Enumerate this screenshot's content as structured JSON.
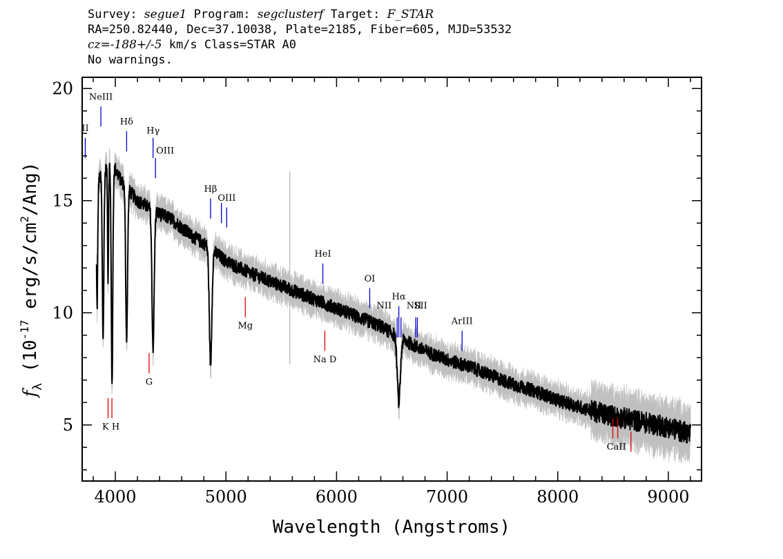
{
  "header": {
    "survey_label": "Survey:",
    "survey": "segue1",
    "program_label": "Program:",
    "program": "segclusterf",
    "target_label": "Target:",
    "target": "F_STAR",
    "line2": "RA=250.82440, Dec=37.10038, Plate=2185, Fiber=605, MJD=53532",
    "cz_prefix": "cz=",
    "cz_value": "-188+/-5",
    "cz_suffix": " km/s Class=STAR A0",
    "warnings": "No warnings."
  },
  "chart_data": {
    "type": "line",
    "xlabel": "Wavelength (Angstroms)",
    "ylabel": "f_λ (10^-17 erg/s/cm^2/Ang)",
    "ylabel_parts": {
      "f": "f",
      "sub": "λ",
      "pre": " (10",
      "exp": "-17",
      "mid": " erg/s/cm",
      "exp2": "2",
      "post": "/Ang)"
    },
    "xlim": [
      3700,
      9300
    ],
    "ylim": [
      2.5,
      20.5
    ],
    "xticks": [
      4000,
      5000,
      6000,
      7000,
      8000,
      9000
    ],
    "yticks": [
      5,
      10,
      15,
      20
    ],
    "grid": false,
    "continuum": [
      [
        3830,
        15.8
      ],
      [
        3900,
        16.3
      ],
      [
        3950,
        16.6
      ],
      [
        4000,
        16.4
      ],
      [
        4050,
        15.9
      ],
      [
        4100,
        15.6
      ],
      [
        4200,
        15.0
      ],
      [
        4300,
        14.7
      ],
      [
        4400,
        14.4
      ],
      [
        4500,
        14.2
      ],
      [
        4600,
        13.8
      ],
      [
        4700,
        13.4
      ],
      [
        4800,
        13.1
      ],
      [
        4900,
        12.7
      ],
      [
        5000,
        12.3
      ],
      [
        5200,
        11.8
      ],
      [
        5400,
        11.4
      ],
      [
        5600,
        11.0
      ],
      [
        5800,
        10.6
      ],
      [
        6000,
        10.2
      ],
      [
        6200,
        9.8
      ],
      [
        6400,
        9.4
      ],
      [
        6600,
        8.8
      ],
      [
        6800,
        8.3
      ],
      [
        7000,
        7.9
      ],
      [
        7200,
        7.6
      ],
      [
        7400,
        7.2
      ],
      [
        7600,
        6.8
      ],
      [
        7800,
        6.5
      ],
      [
        8000,
        6.1
      ],
      [
        8200,
        5.8
      ],
      [
        8400,
        5.5
      ],
      [
        8600,
        5.3
      ],
      [
        8800,
        5.1
      ],
      [
        9000,
        4.9
      ],
      [
        9200,
        4.6
      ]
    ],
    "absorption_lines": [
      {
        "center": 3835,
        "depth": 0.35,
        "width": 8
      },
      {
        "center": 3889,
        "depth": 0.45,
        "width": 10
      },
      {
        "center": 3934,
        "depth": 0.3,
        "width": 6
      },
      {
        "center": 3970,
        "depth": 0.58,
        "width": 10
      },
      {
        "center": 4102,
        "depth": 0.43,
        "width": 12
      },
      {
        "center": 4341,
        "depth": 0.42,
        "width": 14
      },
      {
        "center": 4861,
        "depth": 0.4,
        "width": 16
      },
      {
        "center": 6563,
        "depth": 0.32,
        "width": 20
      }
    ],
    "noise_amplitude": 0.3,
    "spike": {
      "wavelength": 5577,
      "low": 7.7,
      "high": 16.3
    },
    "emission_markers": [
      {
        "label": "NeIII",
        "wavelength": 3869,
        "y1": 18.3,
        "y2": 19.2
      },
      {
        "label": "OII",
        "wavelength": 3728,
        "y1": 16.9,
        "y2": 17.8
      },
      {
        "label": "Hδ",
        "wavelength": 4102,
        "y1": 17.2,
        "y2": 18.1
      },
      {
        "label": "Hγ",
        "wavelength": 4341,
        "y1": 16.9,
        "y2": 17.8
      },
      {
        "label": "OIII",
        "wavelength": 4363,
        "y1": 16.0,
        "y2": 16.9
      },
      {
        "label": "Hβ",
        "wavelength": 4861,
        "y1": 14.2,
        "y2": 15.1
      },
      {
        "label": "OIII",
        "wavelength": 4959,
        "y1": 14.0,
        "y2": 14.9
      },
      {
        "label": "OIII",
        "wavelength": 5007,
        "y1": 13.8,
        "y2": 14.7
      },
      {
        "label": "HeI",
        "wavelength": 5876,
        "y1": 11.3,
        "y2": 12.2
      },
      {
        "label": "OI",
        "wavelength": 6300,
        "y1": 10.2,
        "y2": 11.1
      },
      {
        "label": "NII",
        "wavelength": 6548,
        "y1": 8.9,
        "y2": 9.8
      },
      {
        "label": "Hα",
        "wavelength": 6563,
        "y1": 8.9,
        "y2": 10.3
      },
      {
        "label": "NII",
        "wavelength": 6583,
        "y1": 8.9,
        "y2": 9.8
      },
      {
        "label": "SII",
        "wavelength": 6716,
        "y1": 8.9,
        "y2": 9.8
      },
      {
        "label": "SII",
        "wavelength": 6731,
        "y1": 8.9,
        "y2": 9.8
      },
      {
        "label": "ArIII",
        "wavelength": 7135,
        "y1": 8.3,
        "y2": 9.2
      }
    ],
    "absorption_markers": [
      {
        "label": "K",
        "wavelength": 3934,
        "y1": 5.3,
        "y2": 6.2
      },
      {
        "label": "H",
        "wavelength": 3969,
        "y1": 5.3,
        "y2": 6.2
      },
      {
        "label": "G",
        "wavelength": 4305,
        "y1": 7.3,
        "y2": 8.2
      },
      {
        "label": "Mg",
        "wavelength": 5175,
        "y1": 9.8,
        "y2": 10.7
      },
      {
        "label": "Na D",
        "wavelength": 5894,
        "y1": 8.3,
        "y2": 9.2
      },
      {
        "label": "CaII",
        "wavelength": 8498,
        "y1": 4.4,
        "y2": 5.3
      },
      {
        "label": "CaII",
        "wavelength": 8542,
        "y1": 4.4,
        "y2": 5.3
      },
      {
        "label": "CaII",
        "wavelength": 8662,
        "y1": 3.8,
        "y2": 4.7
      }
    ],
    "emission_label_positions": [
      {
        "text": "NeIII",
        "wavelength": 3869,
        "y": 19.5
      },
      {
        "text": "II",
        "wavelength": 3728,
        "y": 18.1
      },
      {
        "text": "Hδ",
        "wavelength": 4102,
        "y": 18.4
      },
      {
        "text": "Hγ",
        "wavelength": 4341,
        "y": 18.0
      },
      {
        "text": "OIII",
        "wavelength": 4450,
        "y": 17.1
      },
      {
        "text": "Hβ",
        "wavelength": 4861,
        "y": 15.4
      },
      {
        "text": "OIII",
        "wavelength": 5007,
        "y": 15.0
      },
      {
        "text": "HeI",
        "wavelength": 5876,
        "y": 12.5
      },
      {
        "text": "OI",
        "wavelength": 6300,
        "y": 11.4
      },
      {
        "text": "NII",
        "wavelength": 6430,
        "y": 10.2
      },
      {
        "text": "Hα",
        "wavelength": 6563,
        "y": 10.6
      },
      {
        "text": "NII",
        "wavelength": 6700,
        "y": 10.2
      },
      {
        "text": "SII",
        "wavelength": 6760,
        "y": 10.2
      },
      {
        "text": "ArIII",
        "wavelength": 7135,
        "y": 9.5
      }
    ],
    "absorption_label_positions": [
      {
        "text": "K H",
        "wavelength": 3960,
        "y": 4.8
      },
      {
        "text": "G",
        "wavelength": 4305,
        "y": 6.8
      },
      {
        "text": "Mg",
        "wavelength": 5175,
        "y": 9.3
      },
      {
        "text": "Na D",
        "wavelength": 5894,
        "y": 7.8
      },
      {
        "text": "CaII",
        "wavelength": 8530,
        "y": 3.9
      }
    ],
    "colors": {
      "flux": "#000000",
      "error": "#c0c0c0",
      "emission": "#0000cc",
      "absorption": "#dd0000"
    }
  }
}
